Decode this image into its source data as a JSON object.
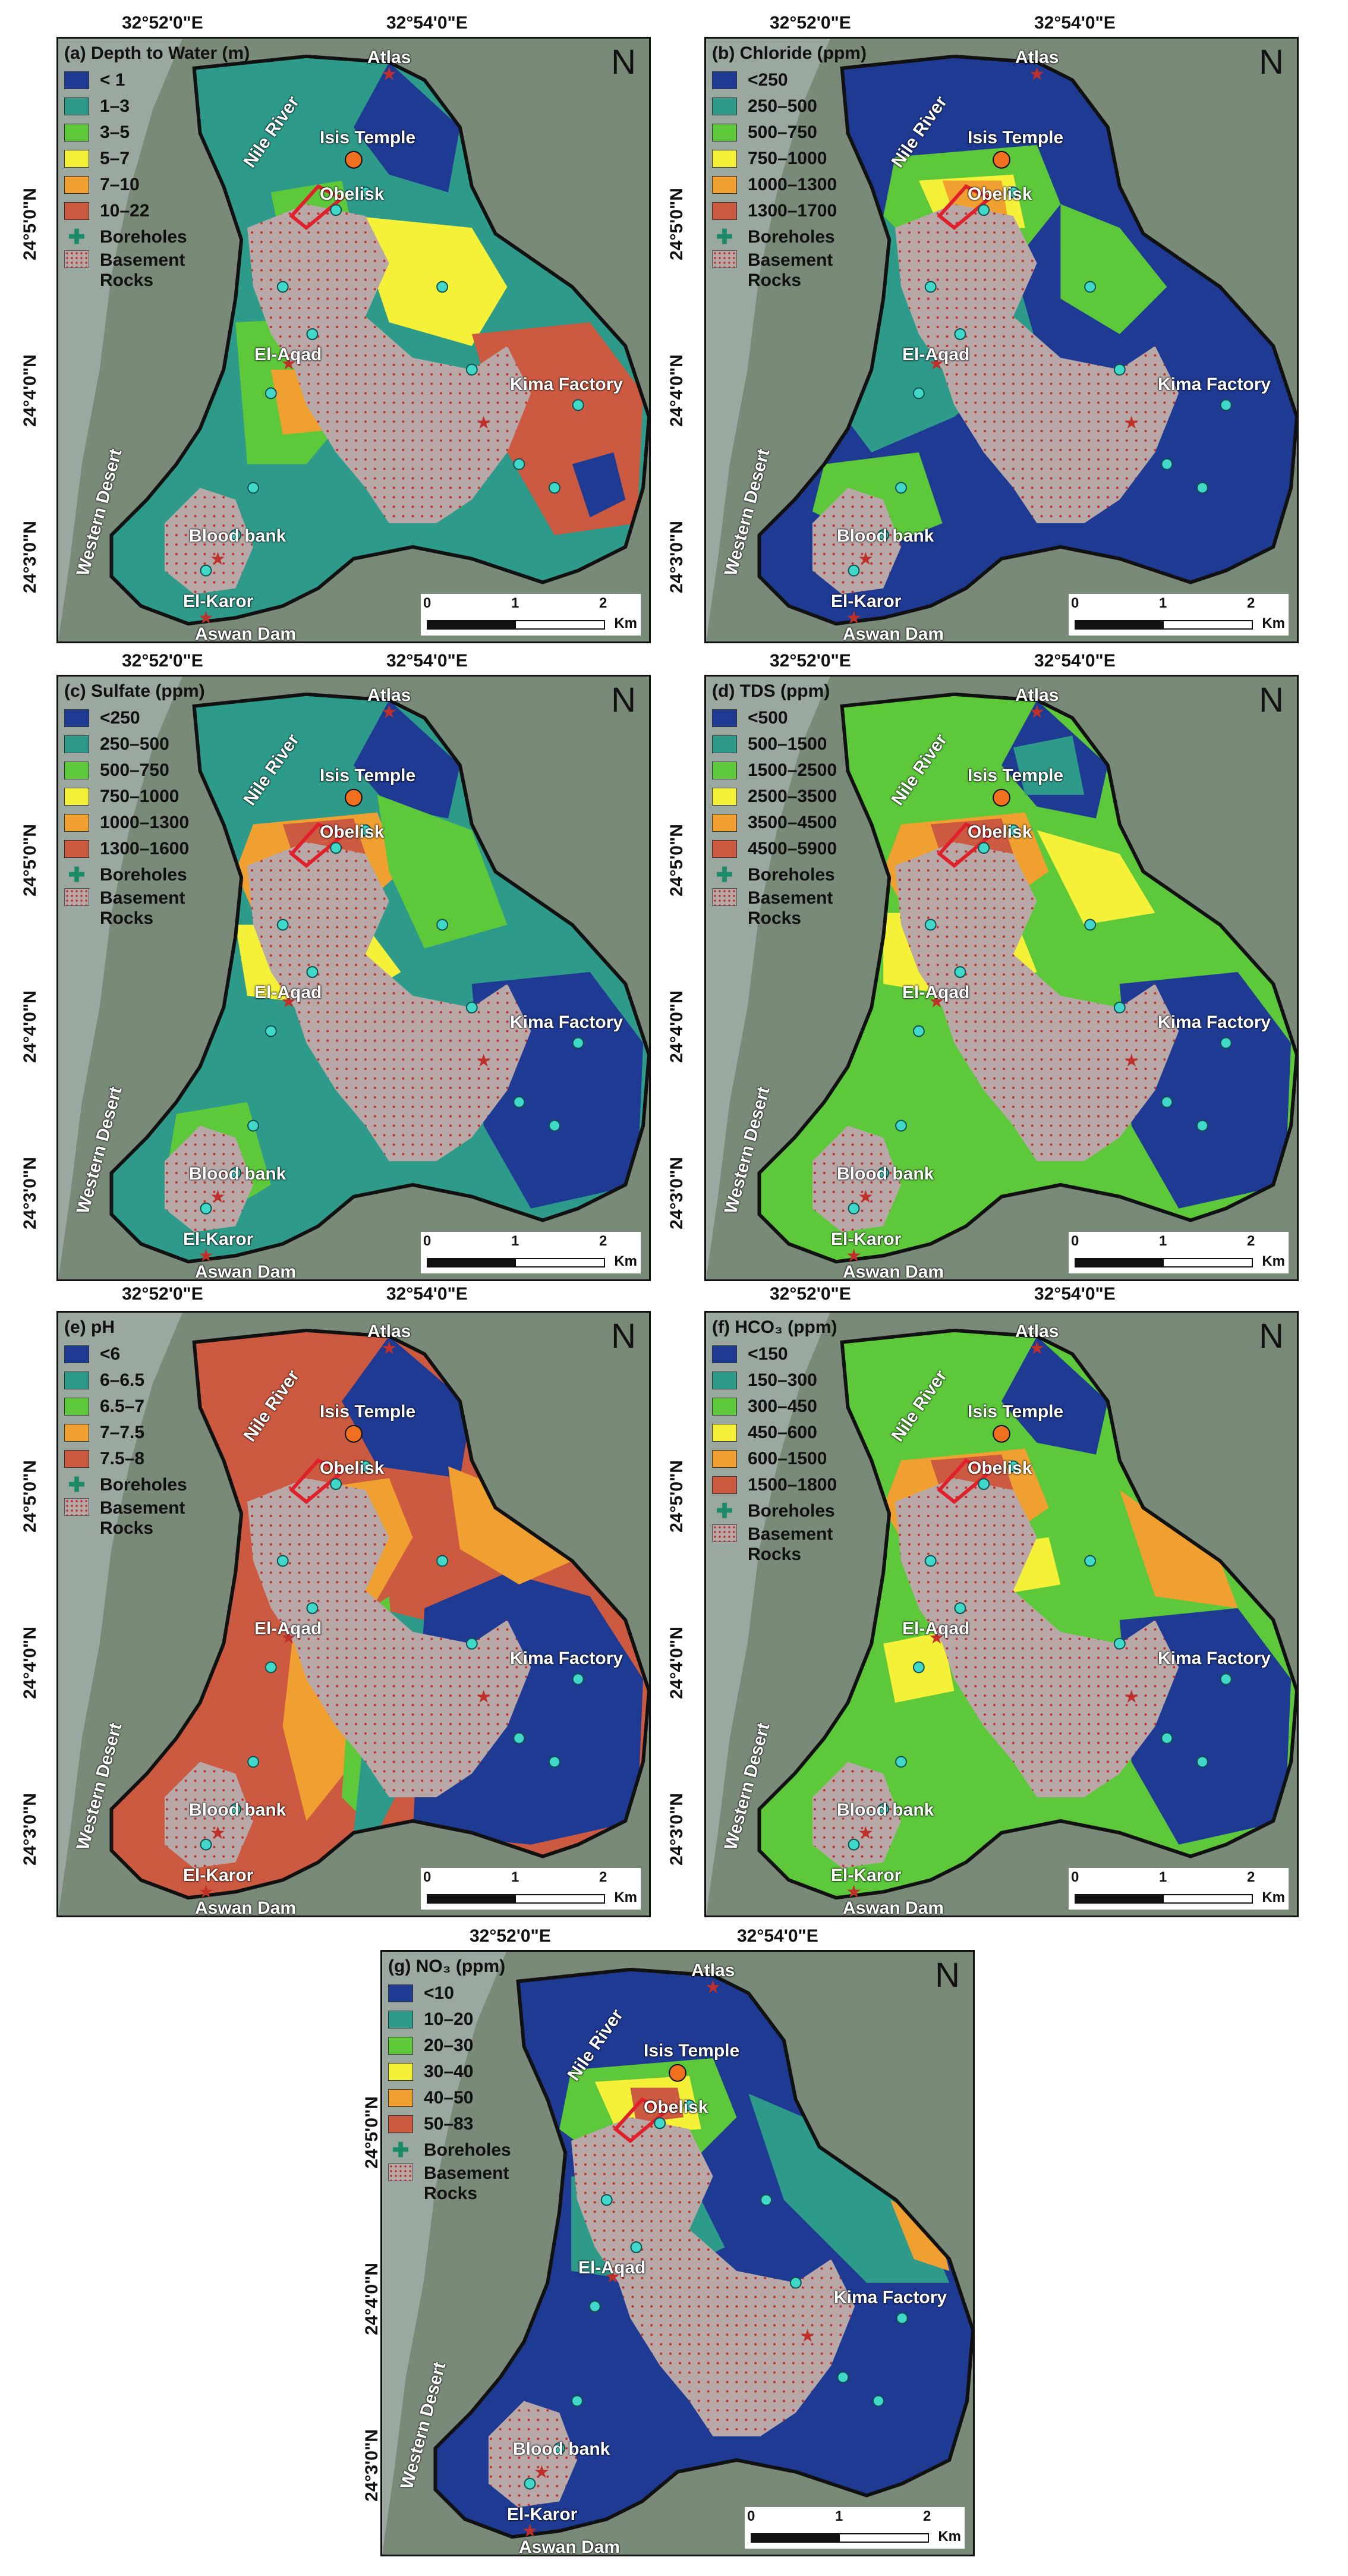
{
  "coords": {
    "lon1": "32°52'0\"E",
    "lon2": "32°54'0\"E",
    "lat1": "24°5'0\"N",
    "lat2": "24°4'0\"N",
    "lat3": "24°3'0\"N"
  },
  "places": {
    "atlas": "Atlas",
    "isis": "Isis Temple",
    "obelisk": "Obelisk",
    "elaqad": "El-Aqad",
    "kima": "Kima Factory",
    "blood": "Blood bank",
    "elkaror": "El-Karor",
    "dam": "Aswan Dam",
    "nile": "Nile River",
    "desert": "Western Desert"
  },
  "legend_common": {
    "boreholes": "Boreholes",
    "rocks": "Basement Rocks"
  },
  "scale": {
    "t0": "0",
    "t1": "1",
    "t2": "2",
    "unit": "Km"
  },
  "north": "N",
  "panels": [
    {
      "title": "(a) Depth to Water (m)",
      "classes": [
        "< 1",
        "1–3",
        "3–5",
        "5–7",
        "7–10",
        "10–22"
      ],
      "colors": [
        "#1f3a93",
        "#2e9a8a",
        "#5cc83a",
        "#f5f038",
        "#f0a030",
        "#cc5a40"
      ]
    },
    {
      "title": "(b) Chloride (ppm)",
      "classes": [
        "<250",
        "250–500",
        "500–750",
        "750–1000",
        "1000–1300",
        "1300–1700"
      ],
      "colors": [
        "#1f3a93",
        "#2e9a8a",
        "#5cc83a",
        "#f5f038",
        "#f0a030",
        "#cc5a40"
      ]
    },
    {
      "title": "(c) Sulfate (ppm)",
      "classes": [
        "<250",
        "250–500",
        "500–750",
        "750–1000",
        "1000–1300",
        "1300–1600"
      ],
      "colors": [
        "#1f3a93",
        "#2e9a8a",
        "#5cc83a",
        "#f5f038",
        "#f0a030",
        "#cc5a40"
      ]
    },
    {
      "title": "(d) TDS (ppm)",
      "classes": [
        "<500",
        "500–1500",
        "1500–2500",
        "2500–3500",
        "3500–4500",
        "4500–5900"
      ],
      "colors": [
        "#1f3a93",
        "#2e9a8a",
        "#5cc83a",
        "#f5f038",
        "#f0a030",
        "#cc5a40"
      ]
    },
    {
      "title": "(e) pH",
      "classes": [
        "<6",
        "6–6.5",
        "6.5–7",
        "7–7.5",
        "7.5–8"
      ],
      "colors": [
        "#1f3a93",
        "#2e9a8a",
        "#5cc83a",
        "#f0a030",
        "#cc5a40"
      ]
    },
    {
      "title": "(f) HCO₃ (ppm)",
      "classes": [
        "<150",
        "150–300",
        "300–450",
        "450–600",
        "600–1500",
        "1500–1800"
      ],
      "colors": [
        "#1f3a93",
        "#2e9a8a",
        "#5cc83a",
        "#f5f038",
        "#f0a030",
        "#cc5a40"
      ]
    },
    {
      "title": "(g) NO₃ (ppm)",
      "classes": [
        "<10",
        "10–20",
        "20–30",
        "30–40",
        "40–50",
        "50–83"
      ],
      "colors": [
        "#1f3a93",
        "#2e9a8a",
        "#5cc83a",
        "#f5f038",
        "#f0a030",
        "#cc5a40"
      ]
    }
  ],
  "colors": {
    "rocks": "#b8a8a8",
    "outside": "#7a8a78",
    "border": "#111111",
    "star": "#c0302a",
    "temple": "#f07020"
  }
}
